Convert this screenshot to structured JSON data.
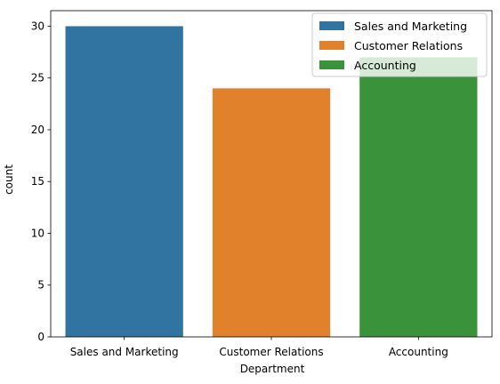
{
  "chart_data": {
    "type": "bar",
    "categories": [
      "Sales and Marketing",
      "Customer Relations",
      "Accounting"
    ],
    "values": [
      30,
      24,
      27
    ],
    "xlabel": "Department",
    "ylabel": "count",
    "ylim": [
      0,
      31.5
    ],
    "yticks": [
      0,
      5,
      10,
      15,
      20,
      25,
      30
    ],
    "colors": [
      "#3274a1",
      "#e1812c",
      "#3a923a"
    ],
    "legend": {
      "placement": "top-right",
      "entries": [
        "Sales and Marketing",
        "Customer Relations",
        "Accounting"
      ]
    },
    "grid": false
  }
}
